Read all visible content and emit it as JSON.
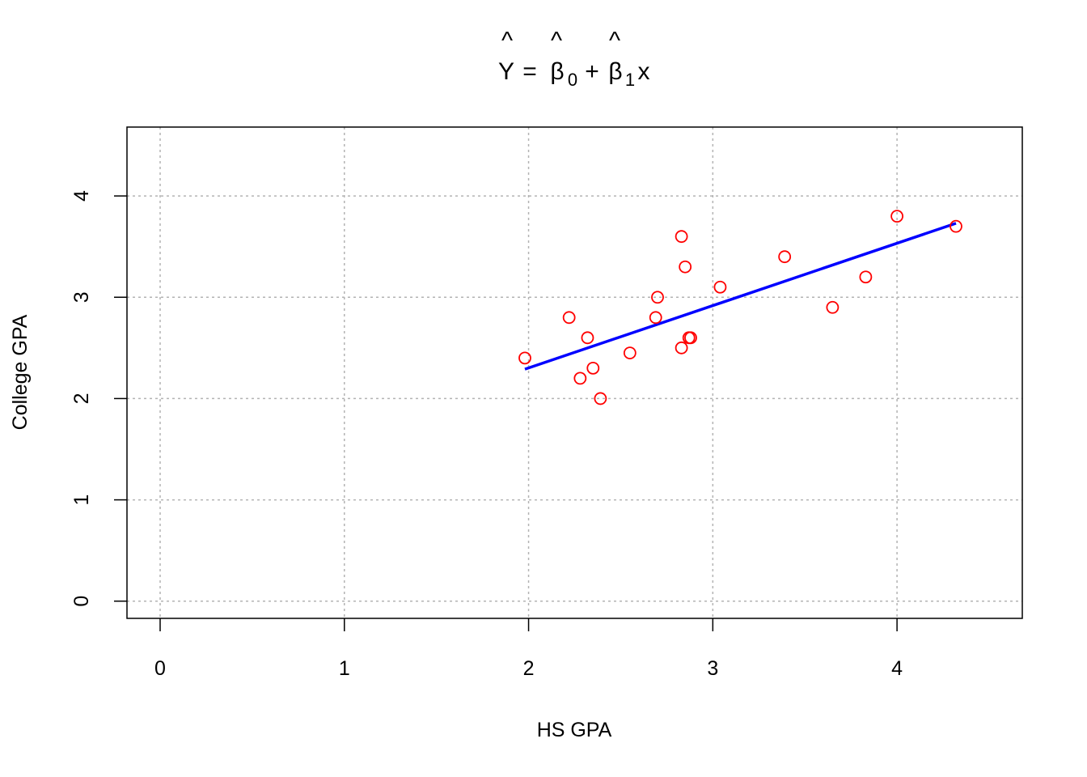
{
  "chart_data": {
    "type": "scatter",
    "title": {
      "Y": "Y",
      "eq": "=",
      "beta": "β",
      "sub0": "0",
      "plus": "+",
      "sub1": "1",
      "x": "x",
      "hat": "^"
    },
    "xlabel": "HS GPA",
    "ylabel": "College GPA",
    "xlim": [
      -0.18,
      4.68
    ],
    "ylim": [
      -0.17,
      4.68
    ],
    "xticks": [
      "0",
      "1",
      "2",
      "3",
      "4"
    ],
    "yticks": [
      "0",
      "1",
      "2",
      "3",
      "4"
    ],
    "grid": true,
    "colors": {
      "points": "#ff0000",
      "line": "#0000ff",
      "grid": "#b3b3b3",
      "axis": "#000000"
    },
    "series": [
      {
        "type": "scatter",
        "x": [
          1.98,
          2.22,
          2.28,
          2.32,
          2.35,
          2.39,
          2.55,
          2.69,
          2.7,
          2.83,
          2.83,
          2.85,
          2.87,
          2.88,
          3.04,
          3.39,
          3.65,
          3.83,
          4.0,
          4.32
        ],
        "y": [
          2.4,
          2.8,
          2.2,
          2.6,
          2.3,
          2.0,
          2.45,
          2.8,
          3.0,
          3.6,
          2.5,
          3.3,
          2.6,
          2.6,
          3.1,
          3.4,
          2.9,
          3.2,
          3.8,
          3.7
        ]
      },
      {
        "type": "line",
        "x": [
          1.98,
          4.32
        ],
        "y": [
          2.29,
          3.73
        ]
      }
    ]
  }
}
